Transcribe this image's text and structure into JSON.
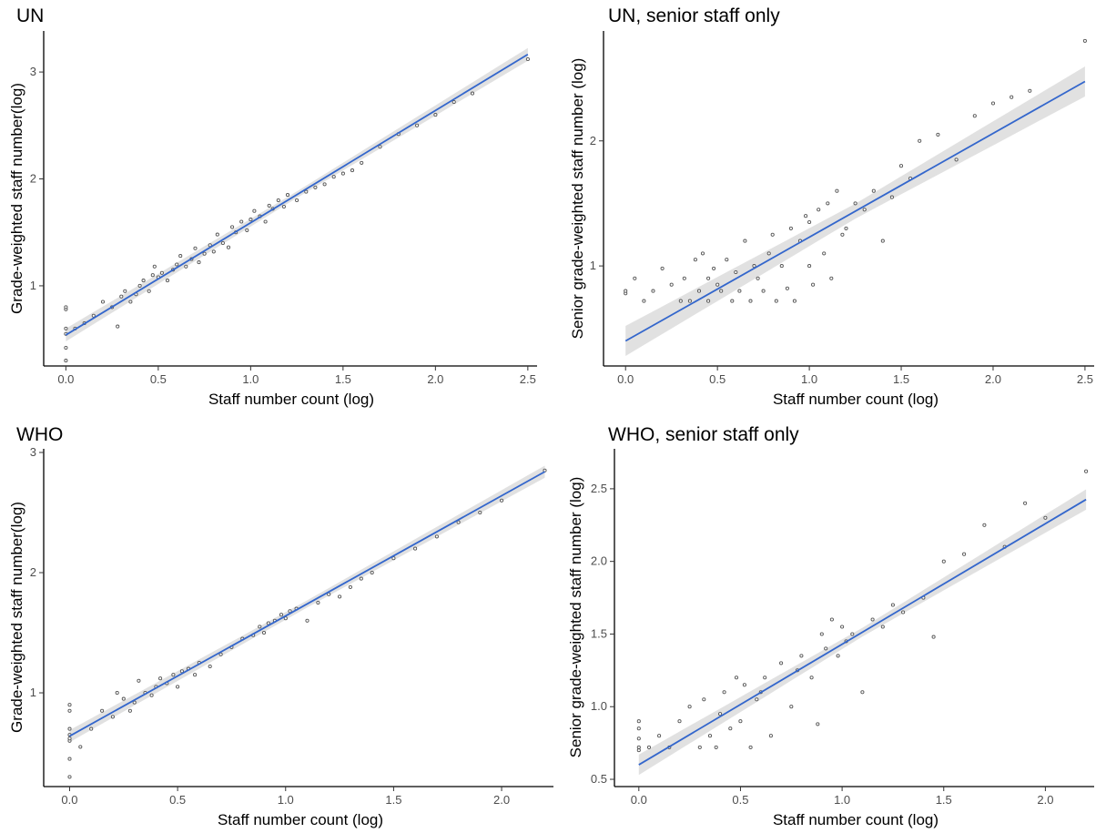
{
  "chart_data": [
    {
      "type": "scatter",
      "title": "UN",
      "xlabel": "Staff number count (log)",
      "ylabel": "Grade-weighted staff number(log)",
      "xlim": [
        -0.12,
        2.55
      ],
      "ylim": [
        0.25,
        3.35
      ],
      "xticks": [
        0.0,
        0.5,
        1.0,
        1.5,
        2.0,
        2.5
      ],
      "xtick_labels": [
        "0.0",
        "0.5",
        "1.0",
        "1.5",
        "2.0",
        "2.5"
      ],
      "yticks": [
        1,
        2,
        3
      ],
      "ytick_labels": [
        "1",
        "2",
        "3"
      ],
      "grid": false,
      "fit": {
        "intercept": 0.54,
        "slope": 1.05,
        "band": [
          0.03,
          0.06
        ]
      },
      "points": {
        "x": [
          0,
          0,
          0,
          0,
          0,
          0,
          0.05,
          0.1,
          0.15,
          0.2,
          0.25,
          0.28,
          0.3,
          0.32,
          0.35,
          0.38,
          0.4,
          0.42,
          0.45,
          0.47,
          0.48,
          0.5,
          0.52,
          0.55,
          0.58,
          0.6,
          0.62,
          0.65,
          0.68,
          0.7,
          0.72,
          0.75,
          0.78,
          0.8,
          0.82,
          0.85,
          0.88,
          0.9,
          0.92,
          0.95,
          0.98,
          1.0,
          1.02,
          1.05,
          1.08,
          1.1,
          1.12,
          1.15,
          1.18,
          1.2,
          1.25,
          1.3,
          1.35,
          1.4,
          1.45,
          1.5,
          1.55,
          1.6,
          1.7,
          1.8,
          1.9,
          2.0,
          2.1,
          2.2,
          2.5
        ],
        "y": [
          0.3,
          0.42,
          0.55,
          0.6,
          0.78,
          0.8,
          0.6,
          0.65,
          0.72,
          0.85,
          0.8,
          0.62,
          0.9,
          0.95,
          0.85,
          0.92,
          1.0,
          1.05,
          0.95,
          1.1,
          1.18,
          1.08,
          1.12,
          1.05,
          1.15,
          1.2,
          1.28,
          1.18,
          1.25,
          1.35,
          1.22,
          1.3,
          1.38,
          1.32,
          1.48,
          1.4,
          1.36,
          1.55,
          1.5,
          1.6,
          1.52,
          1.62,
          1.7,
          1.65,
          1.6,
          1.75,
          1.72,
          1.8,
          1.74,
          1.85,
          1.8,
          1.88,
          1.92,
          1.95,
          2.02,
          2.05,
          2.08,
          2.15,
          2.3,
          2.42,
          2.5,
          2.6,
          2.72,
          2.8,
          3.12
        ]
      }
    },
    {
      "type": "scatter",
      "title": "UN, senior staff only",
      "xlabel": "Staff number count (log)",
      "ylabel": "Senior grade-weighted staff number (log)",
      "xlim": [
        -0.12,
        2.55
      ],
      "ylim": [
        0.2,
        2.85
      ],
      "xticks": [
        0.0,
        0.5,
        1.0,
        1.5,
        2.0,
        2.5
      ],
      "xtick_labels": [
        "0.0",
        "0.5",
        "1.0",
        "1.5",
        "2.0",
        "2.5"
      ],
      "yticks": [
        1,
        2
      ],
      "ytick_labels": [
        "1",
        "2"
      ],
      "grid": false,
      "fit": {
        "intercept": 0.4,
        "slope": 0.83,
        "band": [
          0.06,
          0.12
        ]
      },
      "points": {
        "x": [
          0,
          0,
          0.05,
          0.1,
          0.15,
          0.2,
          0.25,
          0.3,
          0.32,
          0.35,
          0.38,
          0.4,
          0.42,
          0.45,
          0.45,
          0.48,
          0.5,
          0.52,
          0.55,
          0.58,
          0.6,
          0.62,
          0.65,
          0.68,
          0.7,
          0.72,
          0.75,
          0.78,
          0.8,
          0.82,
          0.85,
          0.88,
          0.9,
          0.92,
          0.95,
          0.98,
          1.0,
          1.0,
          1.02,
          1.05,
          1.08,
          1.1,
          1.12,
          1.15,
          1.18,
          1.2,
          1.25,
          1.3,
          1.35,
          1.4,
          1.45,
          1.5,
          1.55,
          1.6,
          1.7,
          1.8,
          1.9,
          2.0,
          2.1,
          2.2,
          2.5
        ],
        "y": [
          0.78,
          0.8,
          0.9,
          0.72,
          0.8,
          0.98,
          0.85,
          0.72,
          0.9,
          0.72,
          1.05,
          0.8,
          1.1,
          0.9,
          0.72,
          0.98,
          0.85,
          0.8,
          1.05,
          0.72,
          0.95,
          0.8,
          1.2,
          0.72,
          1.0,
          0.9,
          0.8,
          1.1,
          1.25,
          0.72,
          1.0,
          0.82,
          1.3,
          0.72,
          1.2,
          1.4,
          1.0,
          1.35,
          0.85,
          1.45,
          1.1,
          1.5,
          0.9,
          1.6,
          1.25,
          1.3,
          1.5,
          1.45,
          1.6,
          1.2,
          1.55,
          1.8,
          1.7,
          2.0,
          2.05,
          1.85,
          2.2,
          2.3,
          2.35,
          2.4,
          2.8
        ]
      }
    },
    {
      "type": "scatter",
      "title": "WHO",
      "xlabel": "Staff number count (log)",
      "ylabel": "Grade-weighted staff number(log)",
      "xlim": [
        -0.12,
        2.24
      ],
      "ylim": [
        0.22,
        3.0
      ],
      "xticks": [
        0.0,
        0.5,
        1.0,
        1.5,
        2.0
      ],
      "xtick_labels": [
        "0.0",
        "0.5",
        "1.0",
        "1.5",
        "2.0"
      ],
      "yticks": [
        1,
        2,
        3
      ],
      "ytick_labels": [
        "1",
        "2",
        "3"
      ],
      "grid": false,
      "fit": {
        "intercept": 0.64,
        "slope": 1.0,
        "band": [
          0.03,
          0.05
        ]
      },
      "points": {
        "x": [
          0,
          0,
          0,
          0,
          0,
          0,
          0,
          0,
          0.05,
          0.1,
          0.15,
          0.2,
          0.22,
          0.25,
          0.28,
          0.3,
          0.32,
          0.35,
          0.38,
          0.4,
          0.42,
          0.45,
          0.48,
          0.5,
          0.52,
          0.55,
          0.58,
          0.6,
          0.65,
          0.7,
          0.75,
          0.8,
          0.85,
          0.88,
          0.9,
          0.92,
          0.95,
          0.98,
          1.0,
          1.02,
          1.05,
          1.1,
          1.15,
          1.2,
          1.25,
          1.3,
          1.35,
          1.4,
          1.5,
          1.6,
          1.7,
          1.8,
          1.9,
          2.0,
          2.2
        ],
        "y": [
          0.3,
          0.45,
          0.6,
          0.62,
          0.65,
          0.7,
          0.85,
          0.9,
          0.55,
          0.7,
          0.85,
          0.8,
          1.0,
          0.95,
          0.85,
          0.92,
          1.1,
          1.0,
          0.98,
          1.05,
          1.12,
          1.08,
          1.15,
          1.05,
          1.18,
          1.2,
          1.15,
          1.25,
          1.22,
          1.32,
          1.38,
          1.45,
          1.48,
          1.55,
          1.5,
          1.58,
          1.6,
          1.65,
          1.62,
          1.68,
          1.7,
          1.6,
          1.75,
          1.82,
          1.8,
          1.88,
          1.95,
          2.0,
          2.12,
          2.2,
          2.3,
          2.42,
          2.5,
          2.6,
          2.85
        ]
      }
    },
    {
      "type": "scatter",
      "title": "WHO, senior staff only",
      "xlabel": "Staff number count (log)",
      "ylabel": "Senior grade-weighted staff number (log)",
      "xlim": [
        -0.12,
        2.24
      ],
      "ylim": [
        0.45,
        2.75
      ],
      "xticks": [
        0.0,
        0.5,
        1.0,
        1.5,
        2.0
      ],
      "xtick_labels": [
        "0.0",
        "0.5",
        "1.0",
        "1.5",
        "2.0"
      ],
      "yticks": [
        0.5,
        1.0,
        1.5,
        2.0,
        2.5
      ],
      "ytick_labels": [
        "0.5",
        "1.0",
        "1.5",
        "2.0",
        "2.5"
      ],
      "grid": false,
      "fit": {
        "intercept": 0.6,
        "slope": 0.83,
        "band": [
          0.03,
          0.07
        ]
      },
      "points": {
        "x": [
          0,
          0,
          0,
          0,
          0,
          0.05,
          0.1,
          0.15,
          0.2,
          0.25,
          0.3,
          0.32,
          0.35,
          0.38,
          0.4,
          0.42,
          0.45,
          0.48,
          0.5,
          0.52,
          0.55,
          0.58,
          0.6,
          0.62,
          0.65,
          0.7,
          0.75,
          0.78,
          0.8,
          0.85,
          0.88,
          0.9,
          0.92,
          0.95,
          0.98,
          1.0,
          1.02,
          1.05,
          1.1,
          1.15,
          1.2,
          1.25,
          1.3,
          1.4,
          1.45,
          1.5,
          1.6,
          1.7,
          1.8,
          1.9,
          2.0,
          2.2
        ],
        "y": [
          0.7,
          0.72,
          0.78,
          0.85,
          0.9,
          0.72,
          0.8,
          0.72,
          0.9,
          1.0,
          0.72,
          1.05,
          0.8,
          0.72,
          0.95,
          1.1,
          0.85,
          1.2,
          0.9,
          1.15,
          0.72,
          1.05,
          1.1,
          1.2,
          0.8,
          1.3,
          1.0,
          1.25,
          1.35,
          1.2,
          0.88,
          1.5,
          1.4,
          1.6,
          1.35,
          1.55,
          1.45,
          1.5,
          1.1,
          1.6,
          1.55,
          1.7,
          1.65,
          1.75,
          1.48,
          2.0,
          2.05,
          2.25,
          2.1,
          2.4,
          2.3,
          2.62
        ]
      }
    }
  ]
}
